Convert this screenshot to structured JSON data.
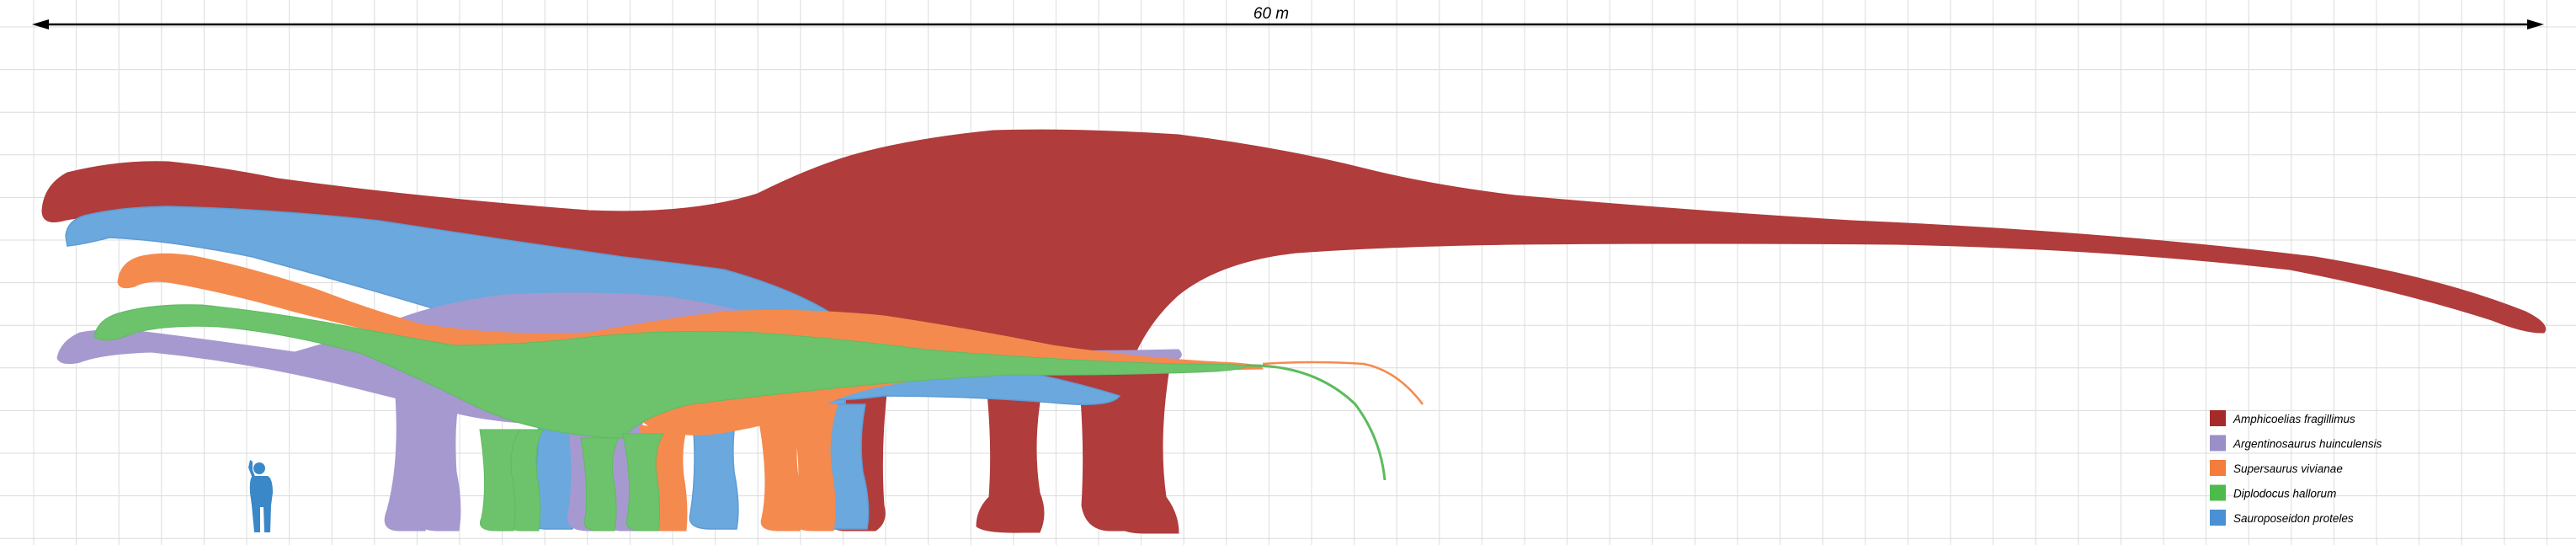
{
  "scale_bar": {
    "label": "60 m"
  },
  "legend": [
    {
      "species": "Amphicoelias fragillimus",
      "color": "#a52a2a"
    },
    {
      "species": "Argentinosaurus huinculensis",
      "color": "#9b8fca"
    },
    {
      "species": "Supersaurus vivianae",
      "color": "#f47c3c"
    },
    {
      "species": "Diplodocus hallorum",
      "color": "#4cbb4c"
    },
    {
      "species": "Sauroposeidon proteles",
      "color": "#4a90d6"
    }
  ],
  "human": {
    "name": "human-silhouette",
    "color": "#3a88c8"
  }
}
